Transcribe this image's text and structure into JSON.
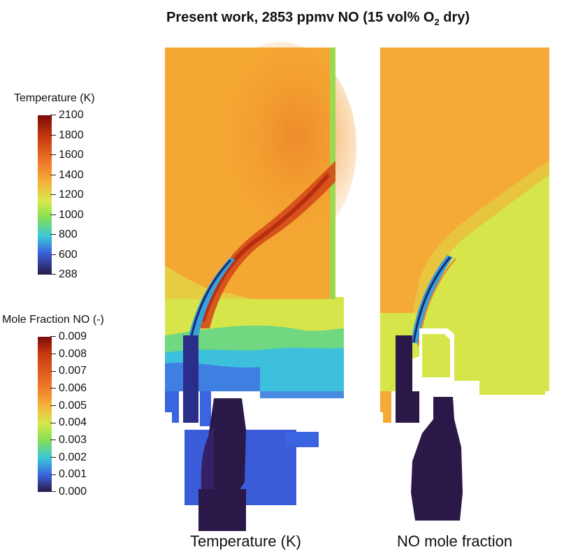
{
  "title": "Present work, 2853 ppmv NO (15 vol% O",
  "title_sub": "2",
  "title_tail": " dry)",
  "colorbars": {
    "temperature": {
      "label": "Temperature (K)",
      "ticks": [
        "2100",
        "1800",
        "1600",
        "1400",
        "1200",
        "1000",
        "800",
        "600",
        "288"
      ]
    },
    "no": {
      "label": "Mole Fraction NO (-)",
      "ticks": [
        "0.009",
        "0.008",
        "0.007",
        "0.006",
        "0.005",
        "0.004",
        "0.003",
        "0.002",
        "0.001",
        "0.000"
      ]
    }
  },
  "captions": {
    "left": "Temperature (K)",
    "right": "NO mole fraction"
  },
  "colors": {
    "hot_orange": "#f5a030",
    "dark_red": "#c83a10",
    "yellow_green": "#d6e84a",
    "cyan": "#3cc8d8",
    "blue": "#3a64e0",
    "dark_navy": "#2a1848"
  }
}
